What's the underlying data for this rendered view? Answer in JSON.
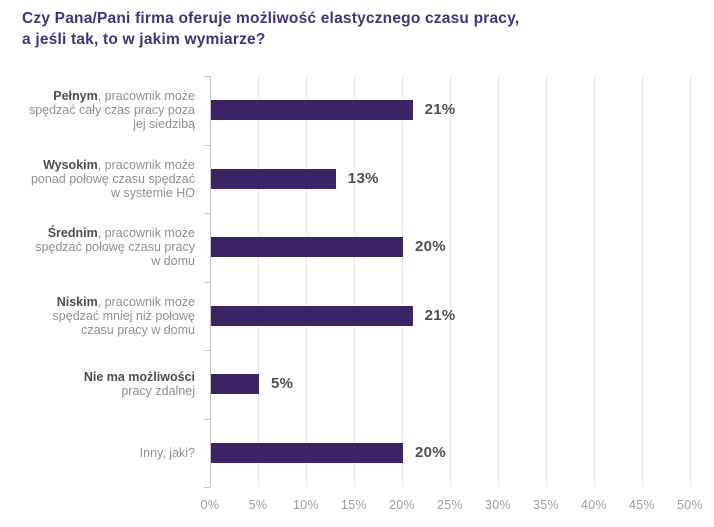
{
  "chart_data": {
    "type": "bar",
    "orientation": "horizontal",
    "title": "Czy Pana/Pani firma oferuje możliwość elastycznego czasu pracy, a jeśli tak, to w jakim wymiarze?",
    "title_lines": [
      "Czy Pana/Pani firma oferuje możliwość elastycznego czasu pracy,",
      "a jeśli tak, to w jakim wymiarze?"
    ],
    "categories": [
      {
        "name": "Pełnym, pracownik może spędzać cały czas pracy poza jej siedzibą",
        "bold": "Pełnym",
        "line1_rest": ", pracownik może",
        "extra_lines": [
          "spędzać cały czas pracy poza",
          "jej siedzibą"
        ],
        "value": 21,
        "value_label": "21%"
      },
      {
        "name": "Wysokim, pracownik może ponad połowę czasu spędzać w systemie HO",
        "bold": "Wysokim",
        "line1_rest": ", pracownik może",
        "extra_lines": [
          "ponad połowę czasu spędzać",
          "w systemie HO"
        ],
        "value": 13,
        "value_label": "13%"
      },
      {
        "name": "Średnim, pracownik może spędzać połowę czasu pracy w domu",
        "bold": "Średnim",
        "line1_rest": ", pracownik może",
        "extra_lines": [
          "spędzać połowę czasu pracy",
          "w domu"
        ],
        "value": 20,
        "value_label": "20%"
      },
      {
        "name": "Niskim, pracownik może spędzać mniej niż połowę czasu pracy w domu",
        "bold": "Niskim",
        "line1_rest": ", pracownik może",
        "extra_lines": [
          "spędzać mniej niż połowę",
          "czasu pracy w domu"
        ],
        "value": 21,
        "value_label": "21%"
      },
      {
        "name": "Nie ma możliwości pracy zdalnej",
        "bold": "Nie ma możliwości",
        "line1_rest": "",
        "extra_lines": [
          "pracy zdalnej"
        ],
        "value": 5,
        "value_label": "5%"
      },
      {
        "name": "Inny, jaki?",
        "bold": "",
        "line1_rest": "Inny, jaki?",
        "extra_lines": [],
        "value": 20,
        "value_label": "20%"
      }
    ],
    "x_ticks": [
      "0%",
      "5%",
      "10%",
      "15%",
      "20%",
      "25%",
      "30%",
      "35%",
      "40%",
      "45%",
      "50%"
    ],
    "xlim": [
      0,
      50
    ],
    "grid": true,
    "legend": false,
    "colors": {
      "bar": "#3c2366",
      "title": "#453182",
      "label_bold": "#4d4d4d",
      "label_regular": "#8f8f8f",
      "value_label": "#4f4f4f",
      "tick_label": "#9b9b9b",
      "gridline": "#e8e8e8",
      "axis": "#c2c2c2"
    }
  }
}
